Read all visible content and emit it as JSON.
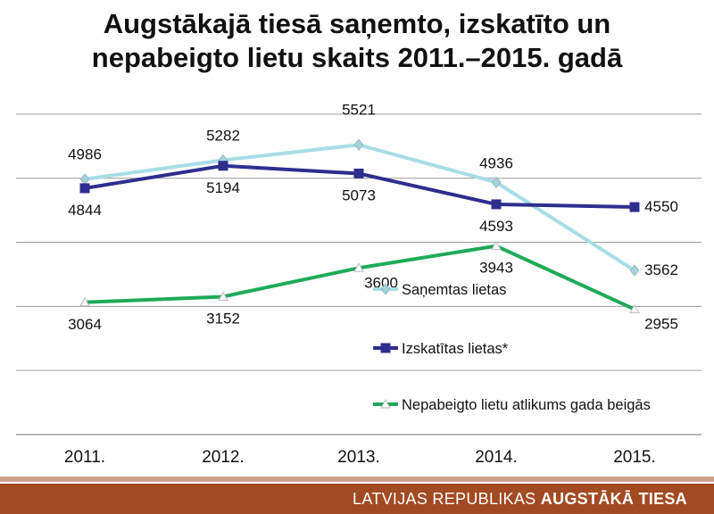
{
  "chart_data": {
    "type": "line",
    "title_line1": "Augstākajā tiesā saņemto, izskatīto un",
    "title_line2": "nepabeigto lietu skaits 2011.–2015. gadā",
    "categories": [
      "2011.",
      "2012.",
      "2013.",
      "2014.",
      "2015."
    ],
    "ylim": [
      1000,
      6500
    ],
    "grid": true,
    "legend_position": "bottom-right",
    "series": [
      {
        "name": "Saņemtas lietas",
        "values": [
          4986,
          5282,
          5521,
          4936,
          3562
        ],
        "color": "#a8dde6",
        "marker": "diamond"
      },
      {
        "name": "Izskatītas lietas*",
        "values": [
          4844,
          5194,
          5073,
          4593,
          4550
        ],
        "color": "#2e2e8f",
        "marker": "square"
      },
      {
        "name": "Nepabeigto lietu atlikums gada beigās",
        "values": [
          3064,
          3152,
          3600,
          3943,
          2955
        ],
        "color": "#1faa59",
        "marker": "triangle"
      }
    ]
  },
  "footer": {
    "text_regular": "LATVIJAS REPUBLIKAS ",
    "text_bold": "AUGSTĀKĀ TIESA"
  }
}
